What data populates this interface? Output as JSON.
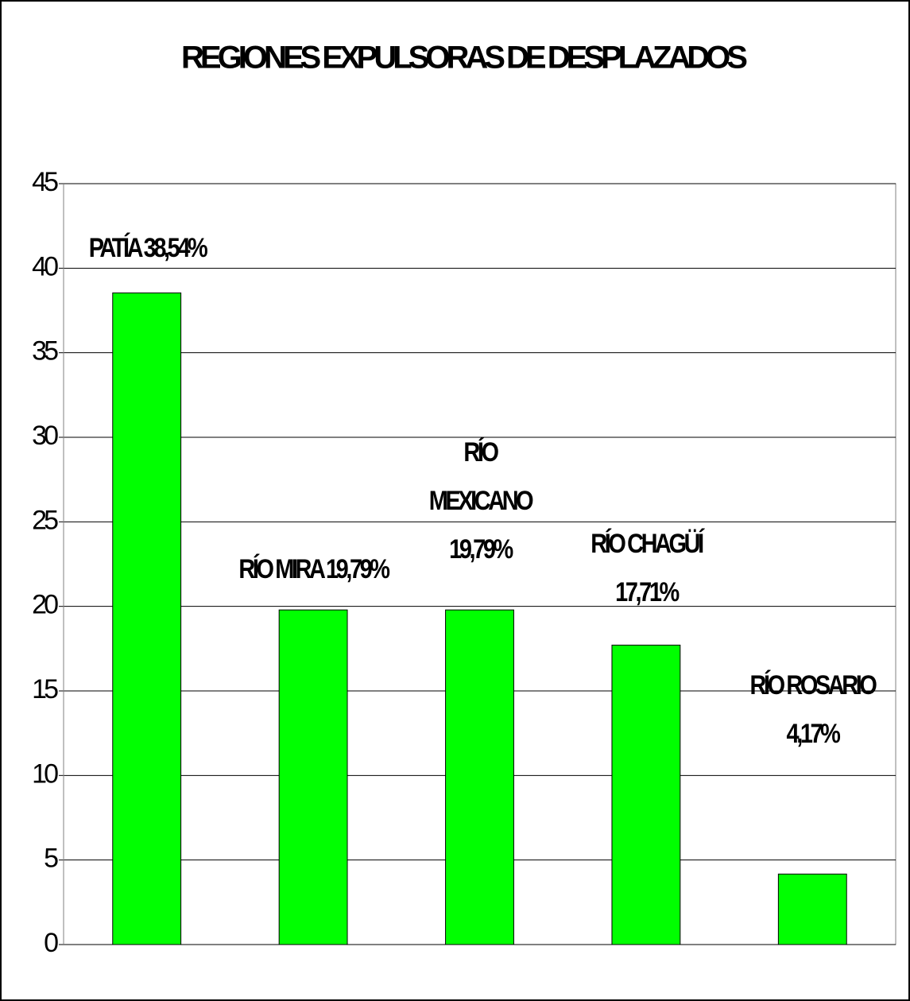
{
  "chart_data": {
    "type": "bar",
    "title": "REGIONES EXPULSORAS DE DESPLAZADOS",
    "values": [
      38.54,
      19.79,
      19.79,
      17.71,
      4.17
    ],
    "value_labels": [
      "PATÍA 38,54%",
      "RÍO MIRA 19,79%",
      "RÍO MEXICANO 19,79%",
      "RÍO CHAGÜÍ 17,71%",
      "RÍO ROSARIO 4,17%"
    ],
    "color": "#00ff00",
    "ylim": [
      0,
      45
    ],
    "yticks": [
      0,
      5,
      10,
      15,
      20,
      25,
      30,
      35,
      40,
      45
    ],
    "grid": true
  }
}
